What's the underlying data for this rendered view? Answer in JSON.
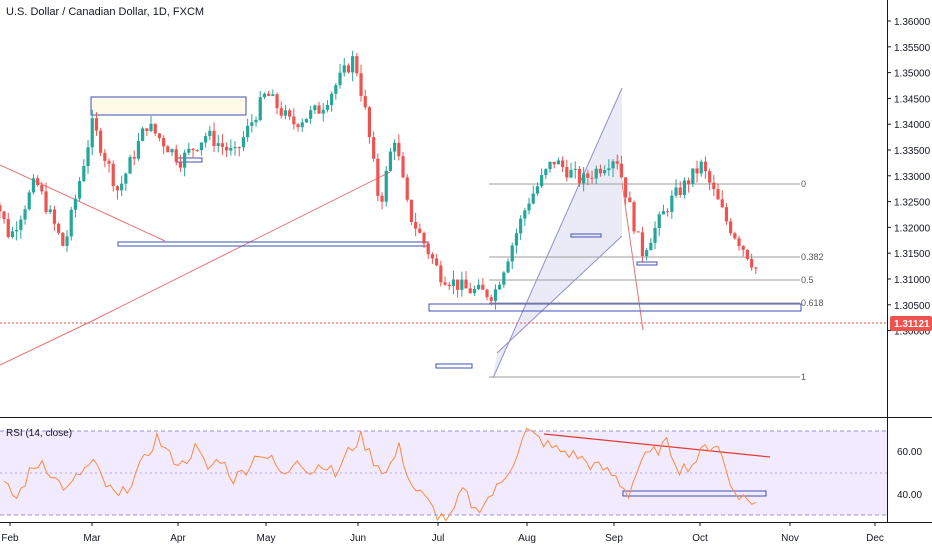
{
  "header": {
    "title": "U.S. Dollar / Canadian Dollar, 1D, FXCM"
  },
  "rsi": {
    "title": "RSI (14, close)",
    "levels": [
      "60.00",
      "40.00"
    ]
  },
  "price_axis": {
    "labels": [
      "1.36000",
      "1.35500",
      "1.35000",
      "1.34500",
      "1.34000",
      "1.33500",
      "1.33000",
      "1.32500",
      "1.32000",
      "1.31500",
      "1.31000",
      "1.30500",
      "1.30000"
    ],
    "current_price": "1.31121"
  },
  "time_axis": {
    "labels": [
      "Feb",
      "Mar",
      "Apr",
      "May",
      "Jun",
      "Jul",
      "Aug",
      "Sep",
      "Oct",
      "Nov",
      "Dec"
    ]
  },
  "fib_labels": [
    "0",
    "0.382",
    "0.5",
    "0.618",
    "1"
  ],
  "colors": {
    "up": "#26a69a",
    "down": "#ef5350",
    "rsi_line": "#ff8a3d",
    "rsi_band": "#e9dcff",
    "drawing_line": "#e53935",
    "box_border": "#3f51b5",
    "channel_fill": "#e6e6f5",
    "current_price": "#ef5350"
  },
  "chart_data": [
    {
      "type": "candlestick",
      "title": "U.S. Dollar / Canadian Dollar, 1D, FXCM",
      "x_categories": [
        "Feb",
        "Mar",
        "Apr",
        "May",
        "Jun",
        "Jul",
        "Aug",
        "Sep",
        "Oct",
        "Nov",
        "Dec"
      ],
      "ylim": [
        1.2975,
        1.3625
      ],
      "current_price": 1.31121,
      "close_path": [
        [
          "Jan 24",
          1.33
        ],
        [
          "Feb 1",
          1.318
        ],
        [
          "Feb 10",
          1.329
        ],
        [
          "Feb 20",
          1.316
        ],
        [
          "Mar 1",
          1.34
        ],
        [
          "Mar 10",
          1.327
        ],
        [
          "Mar 20",
          1.34
        ],
        [
          "Apr 1",
          1.333
        ],
        [
          "Apr 10",
          1.338
        ],
        [
          "Apr 20",
          1.334
        ],
        [
          "May 1",
          1.346
        ],
        [
          "May 10",
          1.34
        ],
        [
          "May 20",
          1.343
        ],
        [
          "Jun 1",
          1.353
        ],
        [
          "Jun 5",
          1.342
        ],
        [
          "Jun 10",
          1.324
        ],
        [
          "Jun 15",
          1.338
        ],
        [
          "Jun 20",
          1.323
        ],
        [
          "Jul 1",
          1.311
        ],
        [
          "Jul 10",
          1.308
        ],
        [
          "Jul 20",
          1.307
        ],
        [
          "Aug 1",
          1.325
        ],
        [
          "Aug 10",
          1.333
        ],
        [
          "Aug 20",
          1.329
        ],
        [
          "Sep 1",
          1.334
        ],
        [
          "Sep 10",
          1.315
        ],
        [
          "Sep 20",
          1.325
        ],
        [
          "Oct 1",
          1.332
        ],
        [
          "Oct 10",
          1.321
        ],
        [
          "Oct 17",
          1.315
        ],
        [
          "Oct 21",
          1.3112
        ]
      ]
    },
    {
      "type": "line",
      "title": "RSI (14, close)",
      "ylim": [
        27,
        73
      ],
      "band": [
        30,
        70
      ],
      "levels": [
        60,
        40
      ],
      "values": [
        44,
        38,
        50,
        56,
        47,
        42,
        50,
        55,
        44,
        38,
        46,
        56,
        67,
        58,
        54,
        62,
        52,
        57,
        47,
        52,
        60,
        56,
        48,
        58,
        50,
        55,
        49,
        60,
        67,
        56,
        50,
        62,
        44,
        38,
        30,
        28,
        42,
        32,
        38,
        45,
        56,
        70,
        66,
        62,
        60,
        58,
        54,
        52,
        48,
        40,
        56,
        60,
        64,
        52,
        54,
        62,
        64,
        44,
        38,
        36
      ]
    }
  ]
}
